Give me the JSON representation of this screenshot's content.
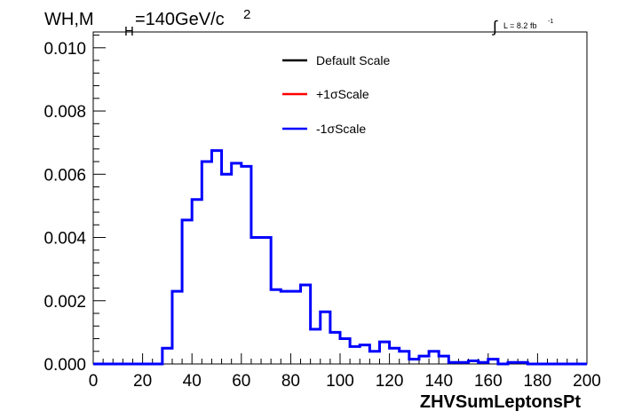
{
  "chart_data": {
    "type": "line",
    "title_main": "WH,M",
    "title_sub": "H",
    "title_rest": "=140GeV/c",
    "title_sup": "2",
    "lumi_integral": "∫",
    "lumi_text": "L = 8.2 fb",
    "lumi_sup": "-1",
    "xlabel": "ZHVSumLeptonsPt",
    "ylabel": "",
    "xlim": [
      0,
      200
    ],
    "ylim": [
      0,
      0.0105
    ],
    "x_ticks": [
      "0",
      "20",
      "40",
      "60",
      "80",
      "100",
      "120",
      "140",
      "160",
      "180",
      "200"
    ],
    "y_ticks": [
      "0.000",
      "0.002",
      "0.004",
      "0.006",
      "0.008",
      "0.010"
    ],
    "bin_width": 4,
    "legend": [
      {
        "label": "Default Scale",
        "color": "#000000"
      },
      {
        "label": "+1σScale",
        "color": "#ff0000"
      },
      {
        "label": "-1σScale",
        "color": "#0000ff"
      }
    ],
    "series": [
      {
        "name": "-1σScale",
        "color": "#0000ff",
        "bin_edges": [
          0,
          4,
          8,
          12,
          16,
          20,
          24,
          28,
          32,
          36,
          40,
          44,
          48,
          52,
          56,
          60,
          64,
          68,
          72,
          76,
          80,
          84,
          88,
          92,
          96,
          100,
          104,
          108,
          112,
          116,
          120,
          124,
          128,
          132,
          136,
          140,
          144,
          148,
          152,
          156,
          160,
          164,
          168,
          172,
          176,
          180,
          184,
          188,
          192,
          196,
          200
        ],
        "values": [
          0,
          0,
          0,
          0,
          0,
          0,
          0,
          0.0005,
          0.0023,
          0.00455,
          0.0052,
          0.0064,
          0.00675,
          0.006,
          0.00635,
          0.00625,
          0.004,
          0.004,
          0.00235,
          0.0023,
          0.0023,
          0.0025,
          0.0011,
          0.00165,
          0.001,
          0.0008,
          0.00055,
          0.0006,
          0.0004,
          0.0007,
          0.0005,
          0.0004,
          0.00015,
          0.00025,
          0.0004,
          0.00025,
          5e-05,
          5e-05,
          0.0001,
          5e-05,
          0.00015,
          0,
          5e-05,
          5e-05,
          0,
          0,
          0,
          0,
          0,
          0
        ]
      }
    ]
  }
}
